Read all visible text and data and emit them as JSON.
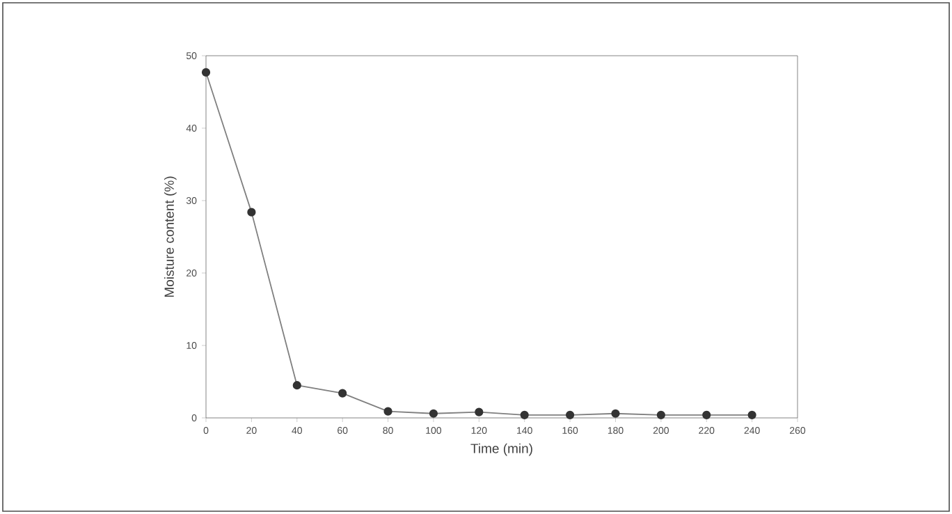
{
  "chart_data": {
    "type": "line",
    "xlabel": "Time (min)",
    "ylabel": "Moisture content (%)",
    "x": [
      0,
      20,
      40,
      60,
      80,
      100,
      120,
      140,
      160,
      180,
      200,
      220,
      240
    ],
    "series": [
      {
        "color": "#7f7f7f",
        "values": [
          47.7,
          28.4,
          4.5,
          3.4,
          0.9,
          0.6,
          0.8,
          0.4,
          0.4,
          0.6,
          0.4,
          0.4,
          0.4
        ]
      }
    ],
    "xlim": [
      0,
      260
    ],
    "xticks": [
      0,
      20,
      40,
      60,
      80,
      100,
      120,
      140,
      160,
      180,
      200,
      220,
      240,
      260
    ],
    "ylim": [
      0,
      50
    ],
    "yticks": [
      0,
      10,
      20,
      30,
      40,
      50
    ],
    "grid": false,
    "marker": "circle",
    "line_style": "solid"
  }
}
